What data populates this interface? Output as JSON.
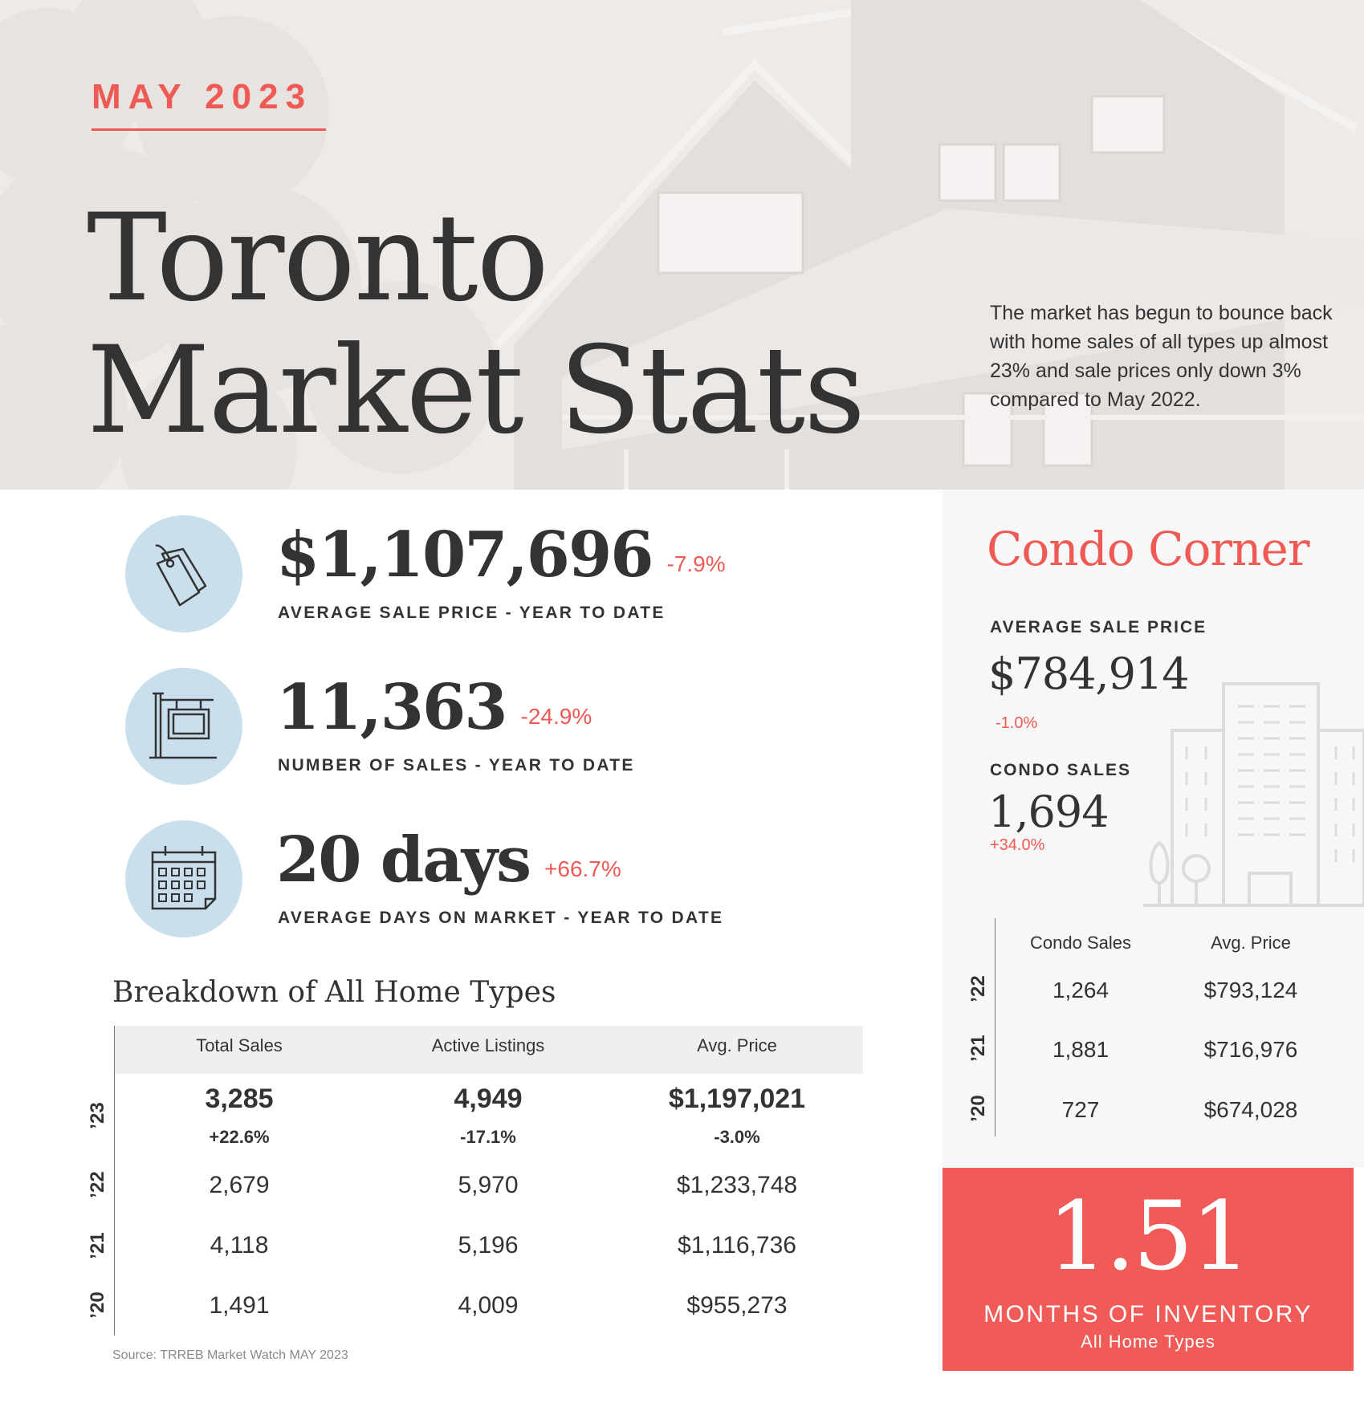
{
  "header": {
    "month": "MAY 2023",
    "title_line1": "Toronto",
    "title_line2": "Market Stats",
    "intro": "The market has begun to bounce back with home sales of all types up almost 23% and sale prices only down 3% compared to May 2022."
  },
  "stats": [
    {
      "value": "$1,107,696",
      "change": "-7.9%",
      "label": "AVERAGE SALE PRICE - YEAR TO DATE",
      "icon": "price-tag-icon"
    },
    {
      "value": "11,363",
      "change": "-24.9%",
      "label": "NUMBER OF SALES - YEAR TO DATE",
      "icon": "sale-sign-icon"
    },
    {
      "value": "20 days",
      "change": "+66.7%",
      "label": "AVERAGE DAYS ON MARKET - YEAR TO DATE",
      "icon": "calendar-icon"
    }
  ],
  "breakdown": {
    "title": "Breakdown of All Home Types",
    "columns": [
      "Total Sales",
      "Active Listings",
      "Avg. Price"
    ],
    "current": {
      "year": "’23",
      "values": [
        "3,285",
        "4,949",
        "$1,197,021"
      ],
      "changes": [
        "+22.6%",
        "-17.1%",
        "-3.0%"
      ]
    },
    "rows": [
      {
        "year": "’22",
        "values": [
          "2,679",
          "5,970",
          "$1,233,748"
        ]
      },
      {
        "year": "’21",
        "values": [
          "4,118",
          "5,196",
          "$1,116,736"
        ]
      },
      {
        "year": "’20",
        "values": [
          "1,491",
          "4,009",
          "$955,273"
        ]
      }
    ],
    "source": "Source: TRREB Market Watch MAY 2023"
  },
  "condo": {
    "title": "Condo Corner",
    "avg_price_label": "AVERAGE SALE PRICE",
    "avg_price": "$784,914",
    "avg_price_change": "-1.0%",
    "sales_label": "CONDO SALES",
    "sales": "1,694",
    "sales_change": "+34.0%",
    "columns": [
      "Condo Sales",
      "Avg. Price"
    ],
    "rows": [
      {
        "year": "’22",
        "values": [
          "1,264",
          "$793,124"
        ]
      },
      {
        "year": "’21",
        "values": [
          "1,881",
          "$716,976"
        ]
      },
      {
        "year": "’20",
        "values": [
          "727",
          "$674,028"
        ]
      }
    ]
  },
  "inventory": {
    "value": "1.51",
    "label": "MONTHS OF INVENTORY",
    "sub_label": "All Home Types"
  },
  "colors": {
    "accent": "#ef5a54",
    "icon_circle": "#c9e0ec",
    "text": "#333333"
  }
}
